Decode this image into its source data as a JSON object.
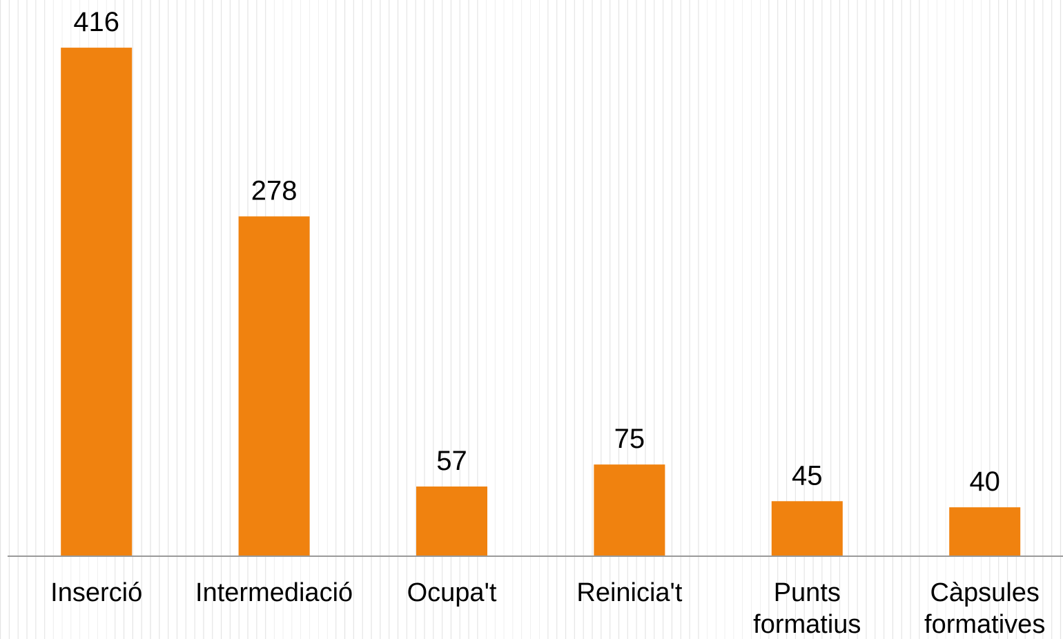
{
  "chart_data": {
    "type": "bar",
    "categories": [
      "Inserció",
      "Intermediació",
      "Ocupa't",
      "Reinicia't",
      "Punts formatius",
      "Càpsules formatives"
    ],
    "values": [
      416,
      278,
      57,
      75,
      45,
      40
    ],
    "color": "#f0820f",
    "ylim": [
      0,
      455
    ]
  }
}
